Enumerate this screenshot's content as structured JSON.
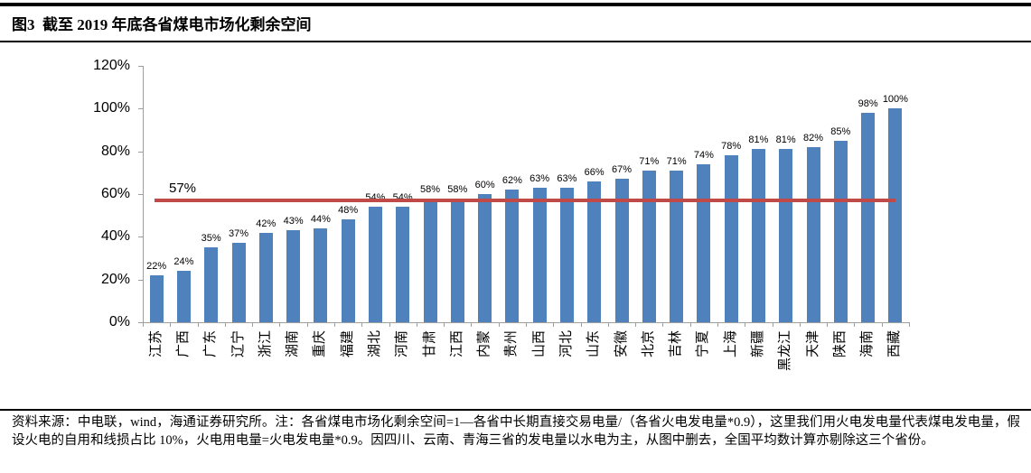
{
  "header": {
    "title": "图3  截至 2019 年底各省煤电市场化剩余空间"
  },
  "chart_data": {
    "type": "bar",
    "categories": [
      "江苏",
      "广西",
      "广东",
      "辽宁",
      "浙江",
      "湖南",
      "重庆",
      "福建",
      "湖北",
      "河南",
      "甘肃",
      "江西",
      "内蒙",
      "贵州",
      "山西",
      "河北",
      "山东",
      "安徽",
      "北京",
      "吉林",
      "宁夏",
      "上海",
      "新疆",
      "黑龙江",
      "天津",
      "陕西",
      "海南",
      "西藏"
    ],
    "values": [
      22,
      24,
      35,
      37,
      42,
      43,
      44,
      48,
      54,
      54,
      58,
      58,
      60,
      62,
      63,
      63,
      66,
      67,
      71,
      71,
      74,
      78,
      81,
      81,
      82,
      85,
      98,
      100
    ],
    "value_label_suffix": "%",
    "y_ticks": [
      "0%",
      "20%",
      "40%",
      "60%",
      "80%",
      "100%",
      "120%"
    ],
    "ylim": [
      0,
      120
    ],
    "grid": false,
    "legend": "none",
    "bar_color": "#4F81BD",
    "reference_line": {
      "value": 57,
      "label": "57%",
      "color": "#BF4A47"
    }
  },
  "footer": {
    "source_note": "资料来源：中电联，wind，海通证券研究所。注：各省煤电市场化剩余空间=1—各省中长期直接交易电量/（各省火电发电量*0.9），这里我们用火电发电量代表煤电发电量，假设火电的自用和线损占比 10%，火电用电量=火电发电量*0.9。因四川、云南、青海三省的发电量以水电为主，从图中删去，全国平均数计算亦剔除这三个省份。"
  }
}
